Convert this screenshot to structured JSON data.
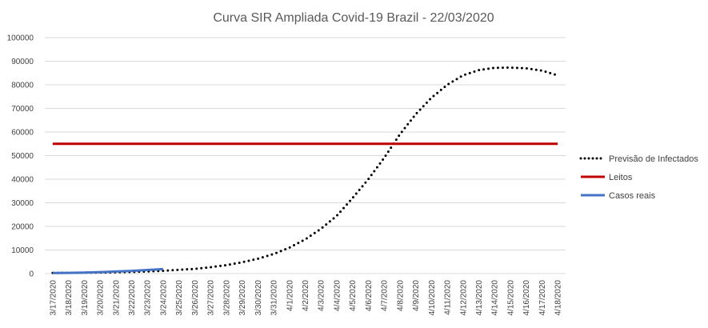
{
  "chart_data": {
    "type": "line",
    "title": "Curva SIR Ampliada Covid-19 Brazil - 22/03/2020",
    "xlabel": "",
    "ylabel": "",
    "ylim": [
      0,
      100000
    ],
    "yticks": [
      0,
      10000,
      20000,
      30000,
      40000,
      50000,
      60000,
      70000,
      80000,
      90000,
      100000
    ],
    "grid": true,
    "legend_position": "right",
    "categories": [
      "3/17/2020",
      "3/18/2020",
      "3/19/2020",
      "3/20/2020",
      "3/21/2020",
      "3/22/2020",
      "3/23/2020",
      "3/24/2020",
      "3/25/2020",
      "3/26/2020",
      "3/27/2020",
      "3/28/2020",
      "3/29/2020",
      "3/30/2020",
      "3/31/2020",
      "4/1/2020",
      "4/2/2020",
      "4/3/2020",
      "4/4/2020",
      "4/5/2020",
      "4/6/2020",
      "4/7/2020",
      "4/8/2020",
      "4/9/2020",
      "4/10/2020",
      "4/11/2020",
      "4/12/2020",
      "4/13/2020",
      "4/14/2020",
      "4/15/2020",
      "4/16/2020",
      "4/17/2020",
      "4/18/2020"
    ],
    "series": [
      {
        "name": "Previsão de Infectados",
        "style": "dotted",
        "color": "#000000",
        "values": [
          300,
          350,
          400,
          450,
          550,
          700,
          900,
          1200,
          1600,
          2000,
          2700,
          3600,
          4800,
          6300,
          8300,
          11000,
          14500,
          19000,
          24500,
          32000,
          40000,
          49000,
          59000,
          67500,
          74500,
          80000,
          84000,
          86200,
          87200,
          87300,
          87000,
          86000,
          84000
        ]
      },
      {
        "name": "Leitos",
        "style": "solid",
        "color": "#c00000",
        "values": [
          55000,
          55000,
          55000,
          55000,
          55000,
          55000,
          55000,
          55000,
          55000,
          55000,
          55000,
          55000,
          55000,
          55000,
          55000,
          55000,
          55000,
          55000,
          55000,
          55000,
          55000,
          55000,
          55000,
          55000,
          55000,
          55000,
          55000,
          55000,
          55000,
          55000,
          55000,
          55000,
          55000
        ]
      },
      {
        "name": "Casos reais",
        "style": "solid",
        "color": "#4472c4",
        "values": [
          234,
          291,
          428,
          621,
          904,
          1128,
          1546,
          1924,
          null,
          null,
          null,
          null,
          null,
          null,
          null,
          null,
          null,
          null,
          null,
          null,
          null,
          null,
          null,
          null,
          null,
          null,
          null,
          null,
          null,
          null,
          null,
          null,
          null
        ]
      }
    ]
  }
}
